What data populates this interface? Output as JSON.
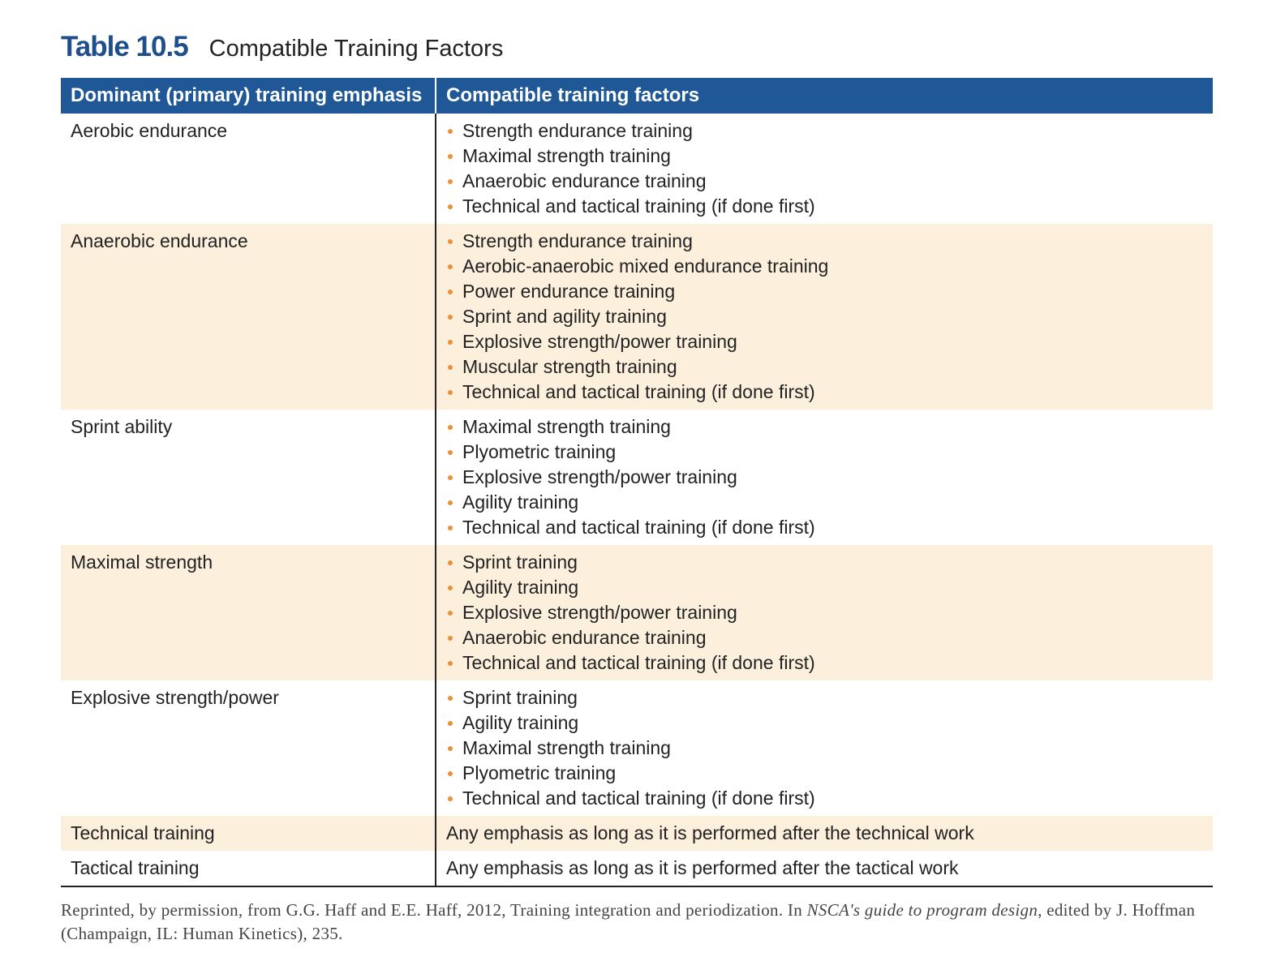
{
  "title": {
    "number": "Table 10.5",
    "text": "Compatible Training Factors"
  },
  "header": {
    "col1": "Dominant (primary) training emphasis",
    "col2": "Compatible training factors"
  },
  "rows": [
    {
      "emphasis": "Aerobic endurance",
      "factors": [
        "Strength endurance training",
        "Maximal strength training",
        "Anaerobic endurance training",
        "Technical and tactical training (if done first)"
      ]
    },
    {
      "emphasis": "Anaerobic endurance",
      "factors": [
        "Strength endurance training",
        "Aerobic-anaerobic mixed endurance training",
        "Power endurance training",
        "Sprint and agility training",
        "Explosive strength/power training",
        "Muscular strength training",
        "Technical and tactical training (if done first)"
      ]
    },
    {
      "emphasis": "Sprint ability",
      "factors": [
        "Maximal strength training",
        "Plyometric training",
        "Explosive strength/power training",
        "Agility training",
        "Technical and tactical training (if done first)"
      ]
    },
    {
      "emphasis": "Maximal strength",
      "factors": [
        "Sprint training",
        "Agility training",
        "Explosive strength/power training",
        "Anaerobic endurance training",
        "Technical and tactical training (if done first)"
      ]
    },
    {
      "emphasis": "Explosive strength/power",
      "factors": [
        "Sprint training",
        "Agility training",
        "Maximal strength training",
        "Plyometric training",
        "Technical and tactical training (if done first)"
      ]
    },
    {
      "emphasis": "Technical training",
      "text": "Any emphasis as long as it is performed after the technical work"
    },
    {
      "emphasis": "Tactical training",
      "text": "Any emphasis as long as it is performed after the tactical work"
    }
  ],
  "source": {
    "before": "Reprinted, by permission, from G.G. Haff and E.E. Haff, 2012, Training integration and periodization. In ",
    "italic": "NSCA's guide to program design",
    "after": ", edited by J. Hoffman (Champaign, IL: Human Kinetics), 235."
  },
  "colors": {
    "header_bg": "#1f5797",
    "title_blue": "#1f4e8c",
    "alt_row_bg": "#fcf0dd",
    "bullet": "#e8903a"
  }
}
